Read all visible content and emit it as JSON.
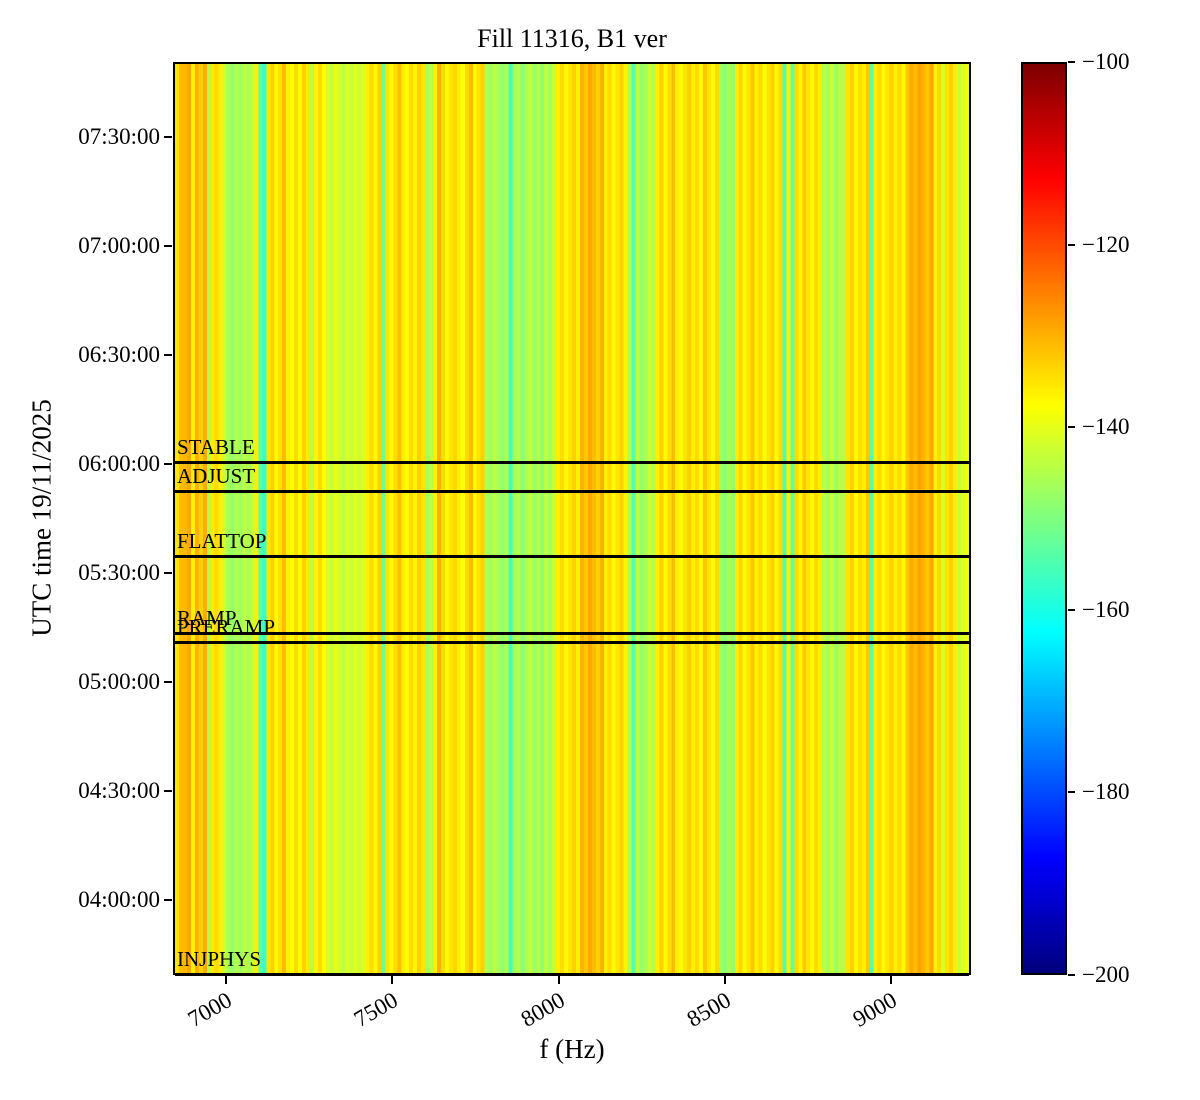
{
  "chart_data": {
    "type": "heatmap",
    "title": "Fill 11316, B1 ver",
    "xlabel": "f (Hz)",
    "ylabel": "UTC time 19/11/2025",
    "colormap": "jet",
    "clim": [
      -200,
      -100
    ],
    "x_range_hz": [
      6840,
      9240
    ],
    "time_range": [
      "03:39:20",
      "07:50:40"
    ],
    "grid": false,
    "legend": "none",
    "colorbar_position": "right",
    "x_ticks": [
      {
        "label": "7000",
        "value": 7000
      },
      {
        "label": "7500",
        "value": 7500
      },
      {
        "label": "8000",
        "value": 8000
      },
      {
        "label": "8500",
        "value": 8500
      },
      {
        "label": "9000",
        "value": 9000
      }
    ],
    "y_ticks": [
      {
        "label": "07:30:00",
        "time": "07:30:00"
      },
      {
        "label": "07:00:00",
        "time": "07:00:00"
      },
      {
        "label": "06:30:00",
        "time": "06:30:00"
      },
      {
        "label": "06:00:00",
        "time": "06:00:00"
      },
      {
        "label": "05:30:00",
        "time": "05:30:00"
      },
      {
        "label": "05:00:00",
        "time": "05:00:00"
      },
      {
        "label": "04:30:00",
        "time": "04:30:00"
      },
      {
        "label": "04:00:00",
        "time": "04:00:00"
      }
    ],
    "colorbar_ticks": [
      {
        "label": "−100",
        "value": -100
      },
      {
        "label": "−120",
        "value": -120
      },
      {
        "label": "−140",
        "value": -140
      },
      {
        "label": "−160",
        "value": -160
      },
      {
        "label": "−180",
        "value": -180
      },
      {
        "label": "−200",
        "value": -200
      }
    ],
    "beam_modes": [
      {
        "label": "STABLE",
        "time": "06:01:00"
      },
      {
        "label": "ADJUST",
        "time": "05:53:00"
      },
      {
        "label": "FLATTOP",
        "time": "05:35:00"
      },
      {
        "label": "RAMP",
        "time": "05:14:00"
      },
      {
        "label": "PRERAMP",
        "time": "05:11:30"
      },
      {
        "label": "INJPHYS",
        "time": "03:40:00"
      }
    ],
    "palette_hints": {
      "base_yellow": "#fff500",
      "gold": "#ffc800",
      "orange": "#ffa000",
      "yellow_green": "#c8ff37",
      "green": "#80ff80",
      "cyan": "#1affe0",
      "line_black": "#000000"
    },
    "columns_db": [
      -135,
      -131,
      -130.5,
      -129,
      -136,
      -130,
      -133,
      -129.5,
      -145,
      -135.5,
      -134,
      -136,
      -143,
      -146,
      -148,
      -145,
      -147,
      -144,
      -146,
      -143,
      -136,
      -154,
      -157,
      -135,
      -133,
      -137,
      -134.5,
      -131,
      -136,
      -138,
      -134,
      -137,
      -133,
      -135.5,
      -144,
      -136.5,
      -134,
      -137.5,
      -141,
      -143,
      -140,
      -142,
      -144,
      -141,
      -143,
      -140.5,
      -142.5,
      -141,
      -136,
      -134,
      -137,
      -133,
      -152,
      -135,
      -137,
      -134,
      -131.5,
      -136,
      -138,
      -134,
      -136.5,
      -133,
      -135,
      -146,
      -144,
      -136,
      -130,
      -134,
      -137,
      -135,
      -133.5,
      -136,
      -138,
      -134,
      -131,
      -137,
      -135,
      -133,
      -145,
      -147,
      -144,
      -146,
      -148.5,
      -145,
      -156,
      -147,
      -144.5,
      -149,
      -146,
      -143.5,
      -147.5,
      -145,
      -148,
      -144,
      -146.5,
      -143,
      -136,
      -134,
      -137,
      -135,
      -133,
      -136,
      -130,
      -132,
      -129,
      -131,
      -133,
      -130,
      -136,
      -134,
      -137,
      -135,
      -133,
      -136.5,
      -145,
      -154,
      -144,
      -148,
      -146,
      -143,
      -145,
      -136,
      -133,
      -137,
      -134,
      -131,
      -136,
      -138,
      -135,
      -133,
      -136,
      -134,
      -137,
      -132,
      -135,
      -137,
      -134,
      -147,
      -149,
      -146,
      -148,
      -136,
      -133.5,
      -137,
      -135,
      -132,
      -136,
      -134,
      -138,
      -135,
      -133,
      -137,
      -134,
      -155,
      -136,
      -153,
      -134,
      -136.5,
      -132,
      -135,
      -137,
      -134,
      -136,
      -144,
      -146,
      -143,
      -147,
      -145,
      -144,
      -135,
      -133,
      -137,
      -134.5,
      -136,
      -132,
      -154,
      -136,
      -134,
      -137,
      -135,
      -133,
      -136,
      -134,
      -137,
      -132,
      -129,
      -131,
      -128.5,
      -130,
      -132,
      -129,
      -136,
      -134,
      -141,
      -135,
      -133,
      -136,
      -143,
      -141,
      -139
    ]
  }
}
